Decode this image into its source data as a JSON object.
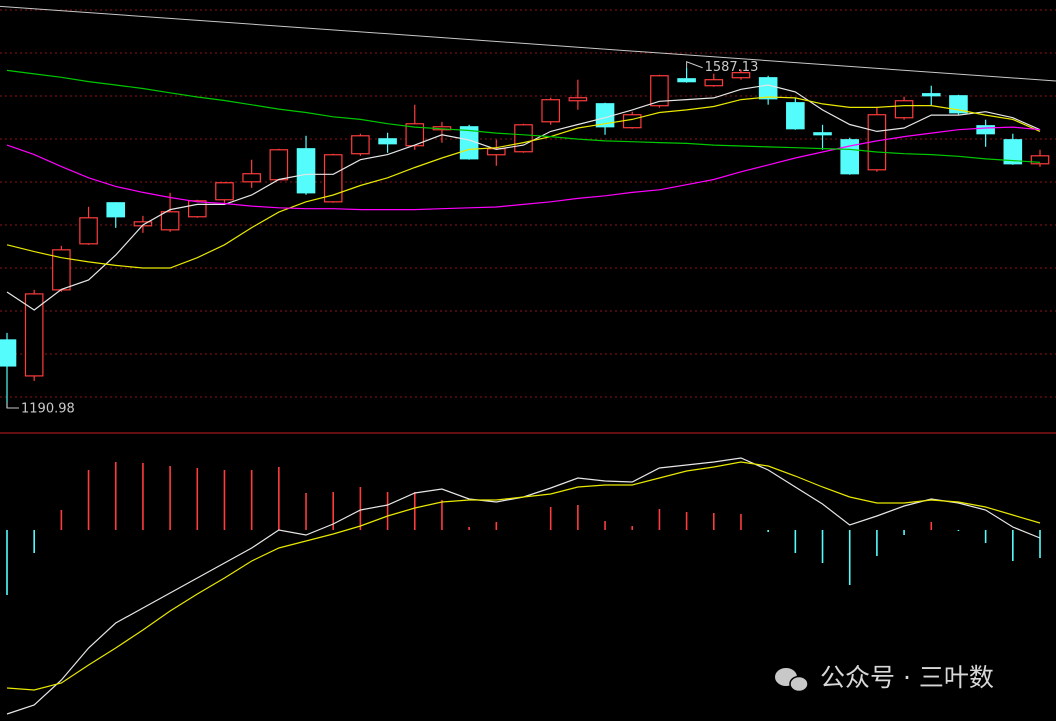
{
  "chart_data": [
    {
      "type": "candlestick",
      "ylim": [
        1163,
        1666
      ],
      "grid": true,
      "up_color": "#ff3c3c",
      "down_color": "#54fcfc",
      "open": [
        1270.2,
        1228.3,
        1328.5,
        1382.1,
        1429.9,
        1403.1,
        1398.4,
        1413.6,
        1433.4,
        1454.3,
        1456.7,
        1492.8,
        1431.0,
        1487.0,
        1504.4,
        1496.3,
        1514.9,
        1518.4,
        1485.8,
        1489.3,
        1524.2,
        1548.7,
        1545.2,
        1517.3,
        1542.9,
        1574.3,
        1566.2,
        1575.5,
        1575.5,
        1546.4,
        1511.4,
        1503.3,
        1468.3,
        1528.9,
        1556.9,
        1554.5,
        1519.6,
        1503.3,
        1475.3
      ],
      "high": [
        1278.4,
        1328.5,
        1379.8,
        1425.2,
        1430.5,
        1414.7,
        1441.5,
        1433.4,
        1453.8,
        1480.0,
        1492.8,
        1507.9,
        1487.0,
        1510.3,
        1511.4,
        1544.1,
        1524.2,
        1520.7,
        1503.3,
        1521.9,
        1552.2,
        1573.2,
        1546.4,
        1535.9,
        1579.0,
        1587.13,
        1580.2,
        1585.0,
        1577.8,
        1552.2,
        1520.7,
        1505.6,
        1541.7,
        1553.4,
        1566.2,
        1555.7,
        1526.6,
        1510.3,
        1491.6
      ],
      "low": [
        1190.98,
        1222.5,
        1326.2,
        1380.9,
        1400.7,
        1394.9,
        1396.1,
        1412.4,
        1429.9,
        1447.3,
        1456.0,
        1439.2,
        1429.9,
        1484.6,
        1488.1,
        1491.6,
        1499.8,
        1480.0,
        1473.0,
        1488.1,
        1520.7,
        1538.2,
        1509.1,
        1516.1,
        1540.6,
        1569.7,
        1565.0,
        1573.2,
        1544.1,
        1514.9,
        1491.6,
        1462.5,
        1466.0,
        1526.6,
        1542.9,
        1532.4,
        1495.1,
        1474.1,
        1471.8
      ],
      "close": [
        1239.9,
        1323.8,
        1375.1,
        1412.4,
        1413.6,
        1407.7,
        1419.4,
        1432.2,
        1453.2,
        1463.7,
        1491.6,
        1441.5,
        1485.8,
        1507.9,
        1498.6,
        1521.9,
        1518.4,
        1481.1,
        1492.8,
        1520.7,
        1549.9,
        1552.2,
        1518.4,
        1532.4,
        1577.8,
        1570.9,
        1573.2,
        1581.4,
        1551.0,
        1516.1,
        1509.1,
        1463.7,
        1532.4,
        1548.7,
        1554.5,
        1534.7,
        1510.3,
        1475.3,
        1484.6
      ],
      "trendline": [
        1658,
        1573
      ],
      "trendline_color": "#c8c8c8",
      "series": [
        {
          "color": "#e6e6e6",
          "values": [
            1326,
            1305,
            1329,
            1340,
            1369,
            1404,
            1422,
            1428,
            1428,
            1439,
            1457,
            1463,
            1463,
            1480,
            1486,
            1497,
            1509,
            1503,
            1492,
            1497,
            1513,
            1521,
            1529,
            1538,
            1548,
            1550,
            1552,
            1562,
            1567,
            1559,
            1538,
            1521,
            1513,
            1517,
            1532,
            1532,
            1536,
            1529,
            1515
          ]
        },
        {
          "color": "#e8e800",
          "values": [
            1381,
            1373,
            1366,
            1361,
            1357,
            1354,
            1354,
            1366,
            1381,
            1401,
            1419,
            1431,
            1439,
            1450,
            1459,
            1471,
            1482,
            1492,
            1494,
            1500,
            1507,
            1517,
            1522,
            1527,
            1535,
            1538,
            1542,
            1550,
            1553,
            1552,
            1545,
            1541,
            1541,
            1543,
            1543,
            1538,
            1532,
            1527,
            1513
          ]
        },
        {
          "color": "#ff00ff",
          "values": [
            1497,
            1486,
            1472,
            1459,
            1449,
            1442,
            1436,
            1431,
            1429,
            1426,
            1424,
            1423,
            1423,
            1422,
            1422,
            1422,
            1423,
            1424,
            1425,
            1428,
            1431,
            1435,
            1438,
            1442,
            1445,
            1451,
            1457,
            1466,
            1474,
            1482,
            1489,
            1496,
            1502,
            1507,
            1511,
            1515,
            1517,
            1518,
            1515
          ]
        },
        {
          "color": "#00c800",
          "values": [
            1584,
            1580,
            1576,
            1571,
            1567,
            1563,
            1558,
            1553,
            1549,
            1544,
            1539,
            1535,
            1530,
            1527,
            1522,
            1518,
            1516,
            1514,
            1511,
            1509,
            1507,
            1504,
            1502,
            1501,
            1500,
            1499,
            1497,
            1496,
            1495,
            1494,
            1493,
            1492,
            1489,
            1487,
            1486,
            1484,
            1481,
            1479,
            1477
          ]
        }
      ]
    },
    {
      "type": "bar",
      "ylim": [
        -95.5,
        47.5
      ],
      "grid": false,
      "pos_color": "#ff3c3c",
      "neg_color": "#54fcfc",
      "values": [
        -32.5,
        -11.5,
        10,
        30,
        34,
        33.5,
        32,
        31,
        30,
        30,
        31.5,
        18.5,
        19,
        21.5,
        19,
        19,
        15,
        1.5,
        4,
        0,
        11.5,
        12.5,
        4.5,
        2,
        10.5,
        9,
        8.5,
        8,
        -1,
        -11.5,
        -16.5,
        -27.5,
        -13,
        -2.5,
        4,
        -0.5,
        -6.5,
        -15.5,
        -14
      ],
      "series": [
        {
          "color": "#e6e6e6",
          "values": [
            -92,
            -87.5,
            -75,
            -59,
            -46.5,
            -39,
            -31.5,
            -24,
            -16.5,
            -9,
            0,
            -2.5,
            3,
            10,
            12.5,
            18.5,
            20.5,
            15.5,
            14,
            16.5,
            21,
            26,
            24.5,
            24,
            31,
            32.5,
            34,
            36,
            30,
            21.5,
            13,
            2.5,
            7,
            12,
            15.5,
            13.5,
            10,
            1.5,
            -4
          ]
        },
        {
          "color": "#e8e800",
          "values": [
            -79,
            -80,
            -76.5,
            -67.5,
            -59,
            -50,
            -40.5,
            -32,
            -24,
            -15.5,
            -9,
            -5.5,
            -2,
            2,
            7,
            11,
            14,
            15,
            15,
            16.5,
            18,
            21.5,
            22.5,
            22.5,
            26,
            29.5,
            31.5,
            34,
            32,
            27,
            21.5,
            16.5,
            13.5,
            13.5,
            15,
            14,
            11.5,
            7.5,
            3.5
          ]
        }
      ]
    }
  ],
  "watermark": "公众号 · 三叶数"
}
